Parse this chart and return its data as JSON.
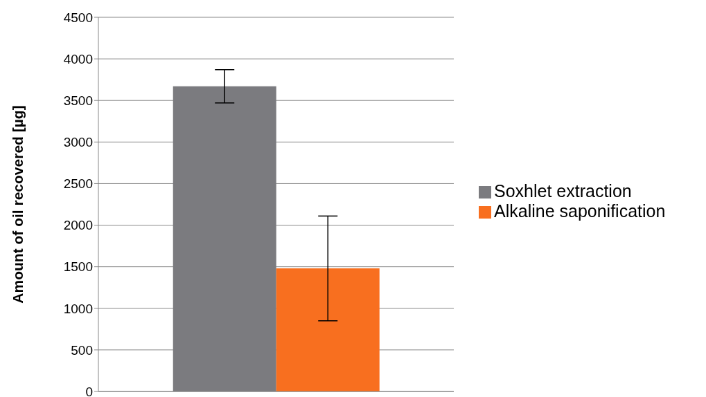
{
  "chart_data": {
    "type": "bar",
    "ylabel": "Amount of oil recovered [µg]",
    "categories": [
      null
    ],
    "series": [
      {
        "name": "Soxhlet extraction",
        "color": "#7b7b7f",
        "values": [
          3670
        ],
        "errors": [
          200
        ]
      },
      {
        "name": "Alkaline saponification",
        "color": "#f86f1f",
        "values": [
          1480
        ],
        "errors": [
          630
        ]
      }
    ],
    "ylim": [
      0,
      4500
    ],
    "yticks": [
      0,
      500,
      1000,
      1500,
      2000,
      2500,
      3000,
      3500,
      4000,
      4500
    ],
    "grid": "y",
    "legend": "right"
  }
}
